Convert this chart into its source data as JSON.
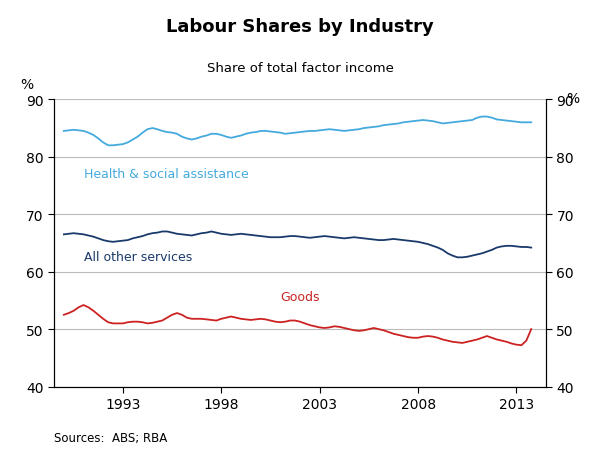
{
  "title": "Labour Shares by Industry",
  "subtitle": "Share of total factor income",
  "source": "Sources:  ABS; RBA",
  "ylabel_left": "%",
  "ylabel_right": "%",
  "ylim": [
    40,
    90
  ],
  "yticks": [
    40,
    50,
    60,
    70,
    80,
    90
  ],
  "xlim_start": 1989.5,
  "xlim_end": 2014.5,
  "xticks": [
    1993,
    1998,
    2003,
    2008,
    2013
  ],
  "health_color": "#44AADD",
  "services_color": "#1A3A6B",
  "goods_color": "#CC2222",
  "health_label": "Health & social assistance",
  "services_label": "All other services",
  "goods_label": "Goods",
  "years": [
    1990.0,
    1990.25,
    1990.5,
    1990.75,
    1991.0,
    1991.25,
    1991.5,
    1991.75,
    1992.0,
    1992.25,
    1992.5,
    1992.75,
    1993.0,
    1993.25,
    1993.5,
    1993.75,
    1994.0,
    1994.25,
    1994.5,
    1994.75,
    1995.0,
    1995.25,
    1995.5,
    1995.75,
    1996.0,
    1996.25,
    1996.5,
    1996.75,
    1997.0,
    1997.25,
    1997.5,
    1997.75,
    1998.0,
    1998.25,
    1998.5,
    1998.75,
    1999.0,
    1999.25,
    1999.5,
    1999.75,
    2000.0,
    2000.25,
    2000.5,
    2000.75,
    2001.0,
    2001.25,
    2001.5,
    2001.75,
    2002.0,
    2002.25,
    2002.5,
    2002.75,
    2003.0,
    2003.25,
    2003.5,
    2003.75,
    2004.0,
    2004.25,
    2004.5,
    2004.75,
    2005.0,
    2005.25,
    2005.5,
    2005.75,
    2006.0,
    2006.25,
    2006.5,
    2006.75,
    2007.0,
    2007.25,
    2007.5,
    2007.75,
    2008.0,
    2008.25,
    2008.5,
    2008.75,
    2009.0,
    2009.25,
    2009.5,
    2009.75,
    2010.0,
    2010.25,
    2010.5,
    2010.75,
    2011.0,
    2011.25,
    2011.5,
    2011.75,
    2012.0,
    2012.25,
    2012.5,
    2012.75,
    2013.0,
    2013.25,
    2013.5,
    2013.75
  ],
  "health": [
    84.5,
    84.6,
    84.7,
    84.6,
    84.5,
    84.2,
    83.8,
    83.2,
    82.5,
    82.0,
    82.0,
    82.1,
    82.2,
    82.5,
    83.0,
    83.5,
    84.2,
    84.8,
    85.0,
    84.8,
    84.5,
    84.3,
    84.2,
    84.0,
    83.5,
    83.2,
    83.0,
    83.2,
    83.5,
    83.7,
    84.0,
    84.0,
    83.8,
    83.5,
    83.3,
    83.5,
    83.7,
    84.0,
    84.2,
    84.3,
    84.5,
    84.5,
    84.4,
    84.3,
    84.2,
    84.0,
    84.1,
    84.2,
    84.3,
    84.4,
    84.5,
    84.5,
    84.6,
    84.7,
    84.8,
    84.7,
    84.6,
    84.5,
    84.6,
    84.7,
    84.8,
    85.0,
    85.1,
    85.2,
    85.3,
    85.5,
    85.6,
    85.7,
    85.8,
    86.0,
    86.1,
    86.2,
    86.3,
    86.4,
    86.3,
    86.2,
    86.0,
    85.8,
    85.9,
    86.0,
    86.1,
    86.2,
    86.3,
    86.4,
    86.8,
    87.0,
    87.0,
    86.8,
    86.5,
    86.4,
    86.3,
    86.2,
    86.1,
    86.0,
    86.0,
    86.0
  ],
  "services": [
    66.5,
    66.6,
    66.7,
    66.6,
    66.5,
    66.3,
    66.1,
    65.8,
    65.5,
    65.3,
    65.2,
    65.3,
    65.4,
    65.5,
    65.8,
    66.0,
    66.2,
    66.5,
    66.7,
    66.8,
    67.0,
    67.0,
    66.8,
    66.6,
    66.5,
    66.4,
    66.3,
    66.5,
    66.7,
    66.8,
    67.0,
    66.8,
    66.6,
    66.5,
    66.4,
    66.5,
    66.6,
    66.5,
    66.4,
    66.3,
    66.2,
    66.1,
    66.0,
    66.0,
    66.0,
    66.1,
    66.2,
    66.2,
    66.1,
    66.0,
    65.9,
    66.0,
    66.1,
    66.2,
    66.1,
    66.0,
    65.9,
    65.8,
    65.9,
    66.0,
    65.9,
    65.8,
    65.7,
    65.6,
    65.5,
    65.5,
    65.6,
    65.7,
    65.6,
    65.5,
    65.4,
    65.3,
    65.2,
    65.0,
    64.8,
    64.5,
    64.2,
    63.8,
    63.2,
    62.8,
    62.5,
    62.5,
    62.6,
    62.8,
    63.0,
    63.2,
    63.5,
    63.8,
    64.2,
    64.4,
    64.5,
    64.5,
    64.4,
    64.3,
    64.3,
    64.2
  ],
  "goods": [
    52.5,
    52.8,
    53.2,
    53.8,
    54.2,
    53.8,
    53.2,
    52.5,
    51.8,
    51.2,
    51.0,
    51.0,
    51.0,
    51.2,
    51.3,
    51.3,
    51.2,
    51.0,
    51.1,
    51.3,
    51.5,
    52.0,
    52.5,
    52.8,
    52.5,
    52.0,
    51.8,
    51.8,
    51.8,
    51.7,
    51.6,
    51.5,
    51.8,
    52.0,
    52.2,
    52.0,
    51.8,
    51.7,
    51.6,
    51.7,
    51.8,
    51.7,
    51.5,
    51.3,
    51.2,
    51.3,
    51.5,
    51.5,
    51.3,
    51.0,
    50.7,
    50.5,
    50.3,
    50.2,
    50.3,
    50.5,
    50.4,
    50.2,
    50.0,
    49.8,
    49.7,
    49.8,
    50.0,
    50.2,
    50.0,
    49.8,
    49.5,
    49.2,
    49.0,
    48.8,
    48.6,
    48.5,
    48.5,
    48.7,
    48.8,
    48.7,
    48.5,
    48.2,
    48.0,
    47.8,
    47.7,
    47.6,
    47.8,
    48.0,
    48.2,
    48.5,
    48.8,
    48.5,
    48.2,
    48.0,
    47.8,
    47.5,
    47.3,
    47.2,
    48.0,
    50.0
  ]
}
